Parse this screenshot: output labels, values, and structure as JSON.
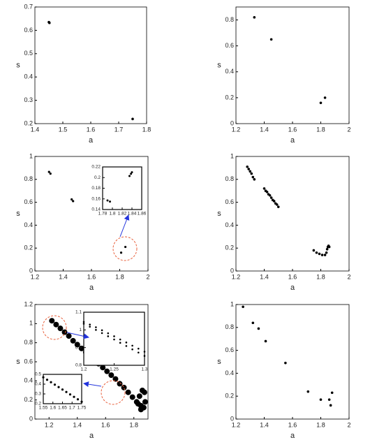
{
  "chart_data": [
    {
      "type": "scatter",
      "x_label": "a",
      "y_label": "s",
      "color": "#000000",
      "marker_size": 1.8,
      "xlim": [
        1.4,
        1.8
      ],
      "xticks": [
        1.4,
        1.5,
        1.6,
        1.7,
        1.8
      ],
      "ylim": [
        0.2,
        0.7
      ],
      "yticks": [
        0.2,
        0.3,
        0.4,
        0.5,
        0.6,
        0.7
      ],
      "x": [
        1.45,
        1.452,
        1.75
      ],
      "y": [
        0.635,
        0.632,
        0.22
      ]
    },
    {
      "type": "scatter",
      "x_label": "a",
      "y_label": "s",
      "color": "#000000",
      "marker_size": 1.8,
      "xlim": [
        1.2,
        2
      ],
      "xticks": [
        1.2,
        1.4,
        1.6,
        1.8,
        2
      ],
      "ylim": [
        0,
        0.9
      ],
      "yticks": [
        0,
        0.2,
        0.4,
        0.6,
        0.8
      ],
      "x": [
        1.33,
        1.45,
        1.8,
        1.83
      ],
      "y": [
        0.82,
        0.65,
        0.16,
        0.2
      ]
    },
    {
      "type": "scatter",
      "x_label": "a",
      "y_label": "s",
      "color": "#000000",
      "marker_size": 1.6,
      "xlim": [
        1.2,
        2
      ],
      "xticks": [
        1.2,
        1.4,
        1.6,
        1.8,
        2
      ],
      "ylim": [
        0,
        1
      ],
      "yticks": [
        0,
        0.2,
        0.4,
        0.6,
        0.8,
        1
      ],
      "x": [
        1.3,
        1.31,
        1.46,
        1.47,
        1.81,
        1.84
      ],
      "y": [
        0.865,
        0.85,
        0.625,
        0.61,
        0.16,
        0.21
      ]
    },
    {
      "type": "scatter",
      "color": "#000000",
      "marker_size": 1.5,
      "xlim": [
        1.78,
        1.86
      ],
      "xticks": [
        1.78,
        1.8,
        1.82,
        1.84,
        1.86
      ],
      "ylim": [
        0.14,
        0.22
      ],
      "yticks": [
        0.14,
        0.16,
        0.18,
        0.2,
        0.22
      ],
      "x": [
        1.79,
        1.795,
        1.835,
        1.838,
        1.84
      ],
      "y": [
        0.157,
        0.155,
        0.203,
        0.207,
        0.21
      ]
    },
    {
      "type": "scatter",
      "x_label": "a",
      "y_label": "s",
      "color": "#000000",
      "marker_size": 1.8,
      "xlim": [
        1.2,
        2
      ],
      "xticks": [
        1.2,
        1.4,
        1.6,
        1.8,
        2
      ],
      "ylim": [
        0,
        1
      ],
      "yticks": [
        0,
        0.2,
        0.4,
        0.6,
        0.8,
        1
      ],
      "x": [
        1.28,
        1.29,
        1.3,
        1.31,
        1.32,
        1.33,
        1.4,
        1.41,
        1.42,
        1.43,
        1.44,
        1.45,
        1.46,
        1.47,
        1.48,
        1.49,
        1.5,
        1.75,
        1.77,
        1.79,
        1.81,
        1.83,
        1.84,
        1.845,
        1.85,
        1.855,
        1.86
      ],
      "y": [
        0.91,
        0.89,
        0.87,
        0.85,
        0.82,
        0.8,
        0.72,
        0.7,
        0.69,
        0.67,
        0.66,
        0.64,
        0.62,
        0.61,
        0.59,
        0.58,
        0.56,
        0.18,
        0.16,
        0.15,
        0.14,
        0.14,
        0.16,
        0.19,
        0.21,
        0.22,
        0.21
      ]
    },
    {
      "type": "scatter",
      "x_label": "a",
      "y_label": "s",
      "color": "#000000",
      "marker_size": 4,
      "xlim": [
        1.1,
        1.9
      ],
      "xticks": [
        1.2,
        1.4,
        1.6,
        1.8
      ],
      "ylim": [
        0,
        1.2
      ],
      "yticks": [
        0,
        0.2,
        0.4,
        0.6,
        0.8,
        1,
        1.2
      ],
      "x": [
        1.22,
        1.25,
        1.28,
        1.31,
        1.34,
        1.37,
        1.4,
        1.43,
        1.46,
        1.49,
        1.52,
        1.55,
        1.58,
        1.61,
        1.64,
        1.67,
        1.7,
        1.73,
        1.76,
        1.79,
        1.82,
        1.85,
        1.87,
        1.88,
        1.875,
        1.86,
        1.84,
        1.83,
        1.85
      ],
      "y": [
        1.03,
        0.99,
        0.95,
        0.91,
        0.87,
        0.82,
        0.78,
        0.74,
        0.7,
        0.66,
        0.62,
        0.58,
        0.54,
        0.5,
        0.46,
        0.42,
        0.37,
        0.33,
        0.28,
        0.23,
        0.18,
        0.14,
        0.12,
        0.18,
        0.28,
        0.3,
        0.24,
        0.16,
        0.1
      ]
    },
    {
      "type": "scatter",
      "color": "#000000",
      "marker_size": 1.3,
      "xlim": [
        1.2,
        1.3
      ],
      "xticks": [
        1.2,
        1.25,
        1.3
      ],
      "ylim": [
        0.8,
        1.1
      ],
      "yticks": [
        0.8,
        0.9,
        1,
        1.1
      ],
      "x": [
        1.2,
        1.21,
        1.22,
        1.23,
        1.24,
        1.25,
        1.26,
        1.27,
        1.28,
        1.29,
        1.3,
        1.2,
        1.21,
        1.22,
        1.23,
        1.24,
        1.25,
        1.26,
        1.27,
        1.28,
        1.29,
        1.3
      ],
      "y": [
        1.045,
        1.03,
        1.015,
        0.998,
        0.981,
        0.964,
        0.946,
        0.929,
        0.911,
        0.894,
        0.877,
        1.035,
        1.018,
        1.0,
        0.982,
        0.964,
        0.946,
        0.927,
        0.909,
        0.89,
        0.872,
        0.853
      ]
    },
    {
      "type": "scatter",
      "color": "#000000",
      "marker_size": 1.6,
      "xlim": [
        1.55,
        1.75
      ],
      "xticks": [
        1.55,
        1.6,
        1.65,
        1.7,
        1.75
      ],
      "ylim": [
        0.2,
        0.5
      ],
      "yticks": [
        0.2,
        0.3,
        0.4,
        0.5
      ],
      "x": [
        1.55,
        1.57,
        1.59,
        1.61,
        1.63,
        1.65,
        1.67,
        1.69,
        1.71,
        1.73,
        1.75
      ],
      "y": [
        0.47,
        0.445,
        0.42,
        0.395,
        0.37,
        0.345,
        0.32,
        0.295,
        0.27,
        0.245,
        0.22
      ]
    },
    {
      "type": "scatter",
      "x_label": "a",
      "y_label": "s",
      "color": "#000000",
      "marker_size": 1.8,
      "xlim": [
        1.2,
        2
      ],
      "xticks": [
        1.2,
        1.4,
        1.6,
        1.8,
        2
      ],
      "ylim": [
        0,
        1
      ],
      "yticks": [
        0,
        0.2,
        0.4,
        0.6,
        0.8,
        1
      ],
      "x": [
        1.25,
        1.32,
        1.36,
        1.41,
        1.55,
        1.71,
        1.8,
        1.86,
        1.87,
        1.88
      ],
      "y": [
        0.98,
        0.84,
        0.79,
        0.68,
        0.49,
        0.24,
        0.17,
        0.17,
        0.12,
        0.23
      ]
    }
  ]
}
